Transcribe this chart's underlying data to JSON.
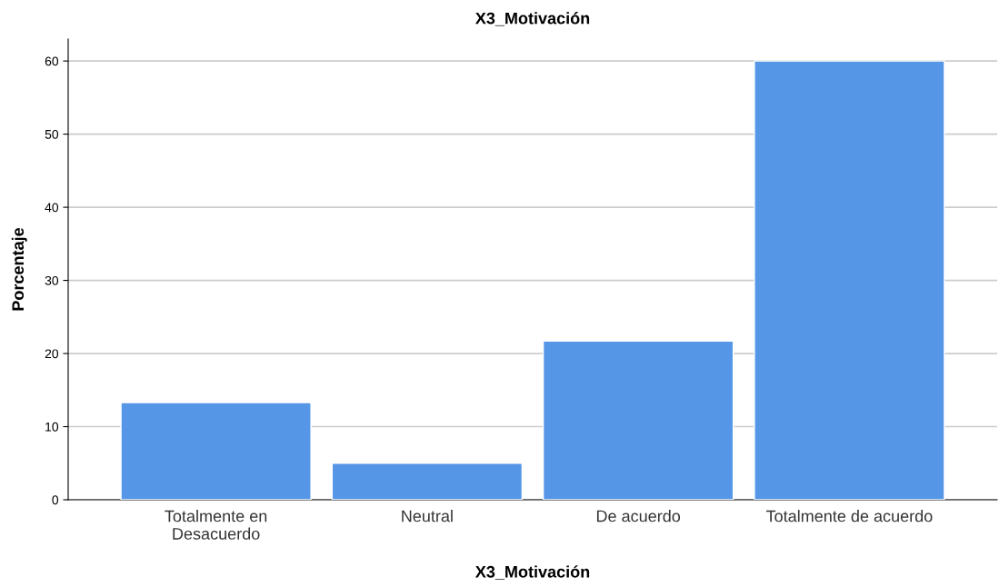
{
  "chart_data": {
    "type": "bar",
    "title": "X3_Motivación",
    "xlabel": "X3_Motivación",
    "ylabel": "Porcentaje",
    "categories": [
      "Totalmente en\nDesacuerdo",
      "Neutral",
      "De acuerdo",
      "Totalmente de acuerdo"
    ],
    "values": [
      13.3,
      5.0,
      21.7,
      60.0
    ],
    "color": "#5596e6",
    "ylim": [
      0,
      63
    ],
    "yticks": [
      0,
      10,
      20,
      30,
      40,
      50,
      60
    ],
    "grid": "y"
  }
}
